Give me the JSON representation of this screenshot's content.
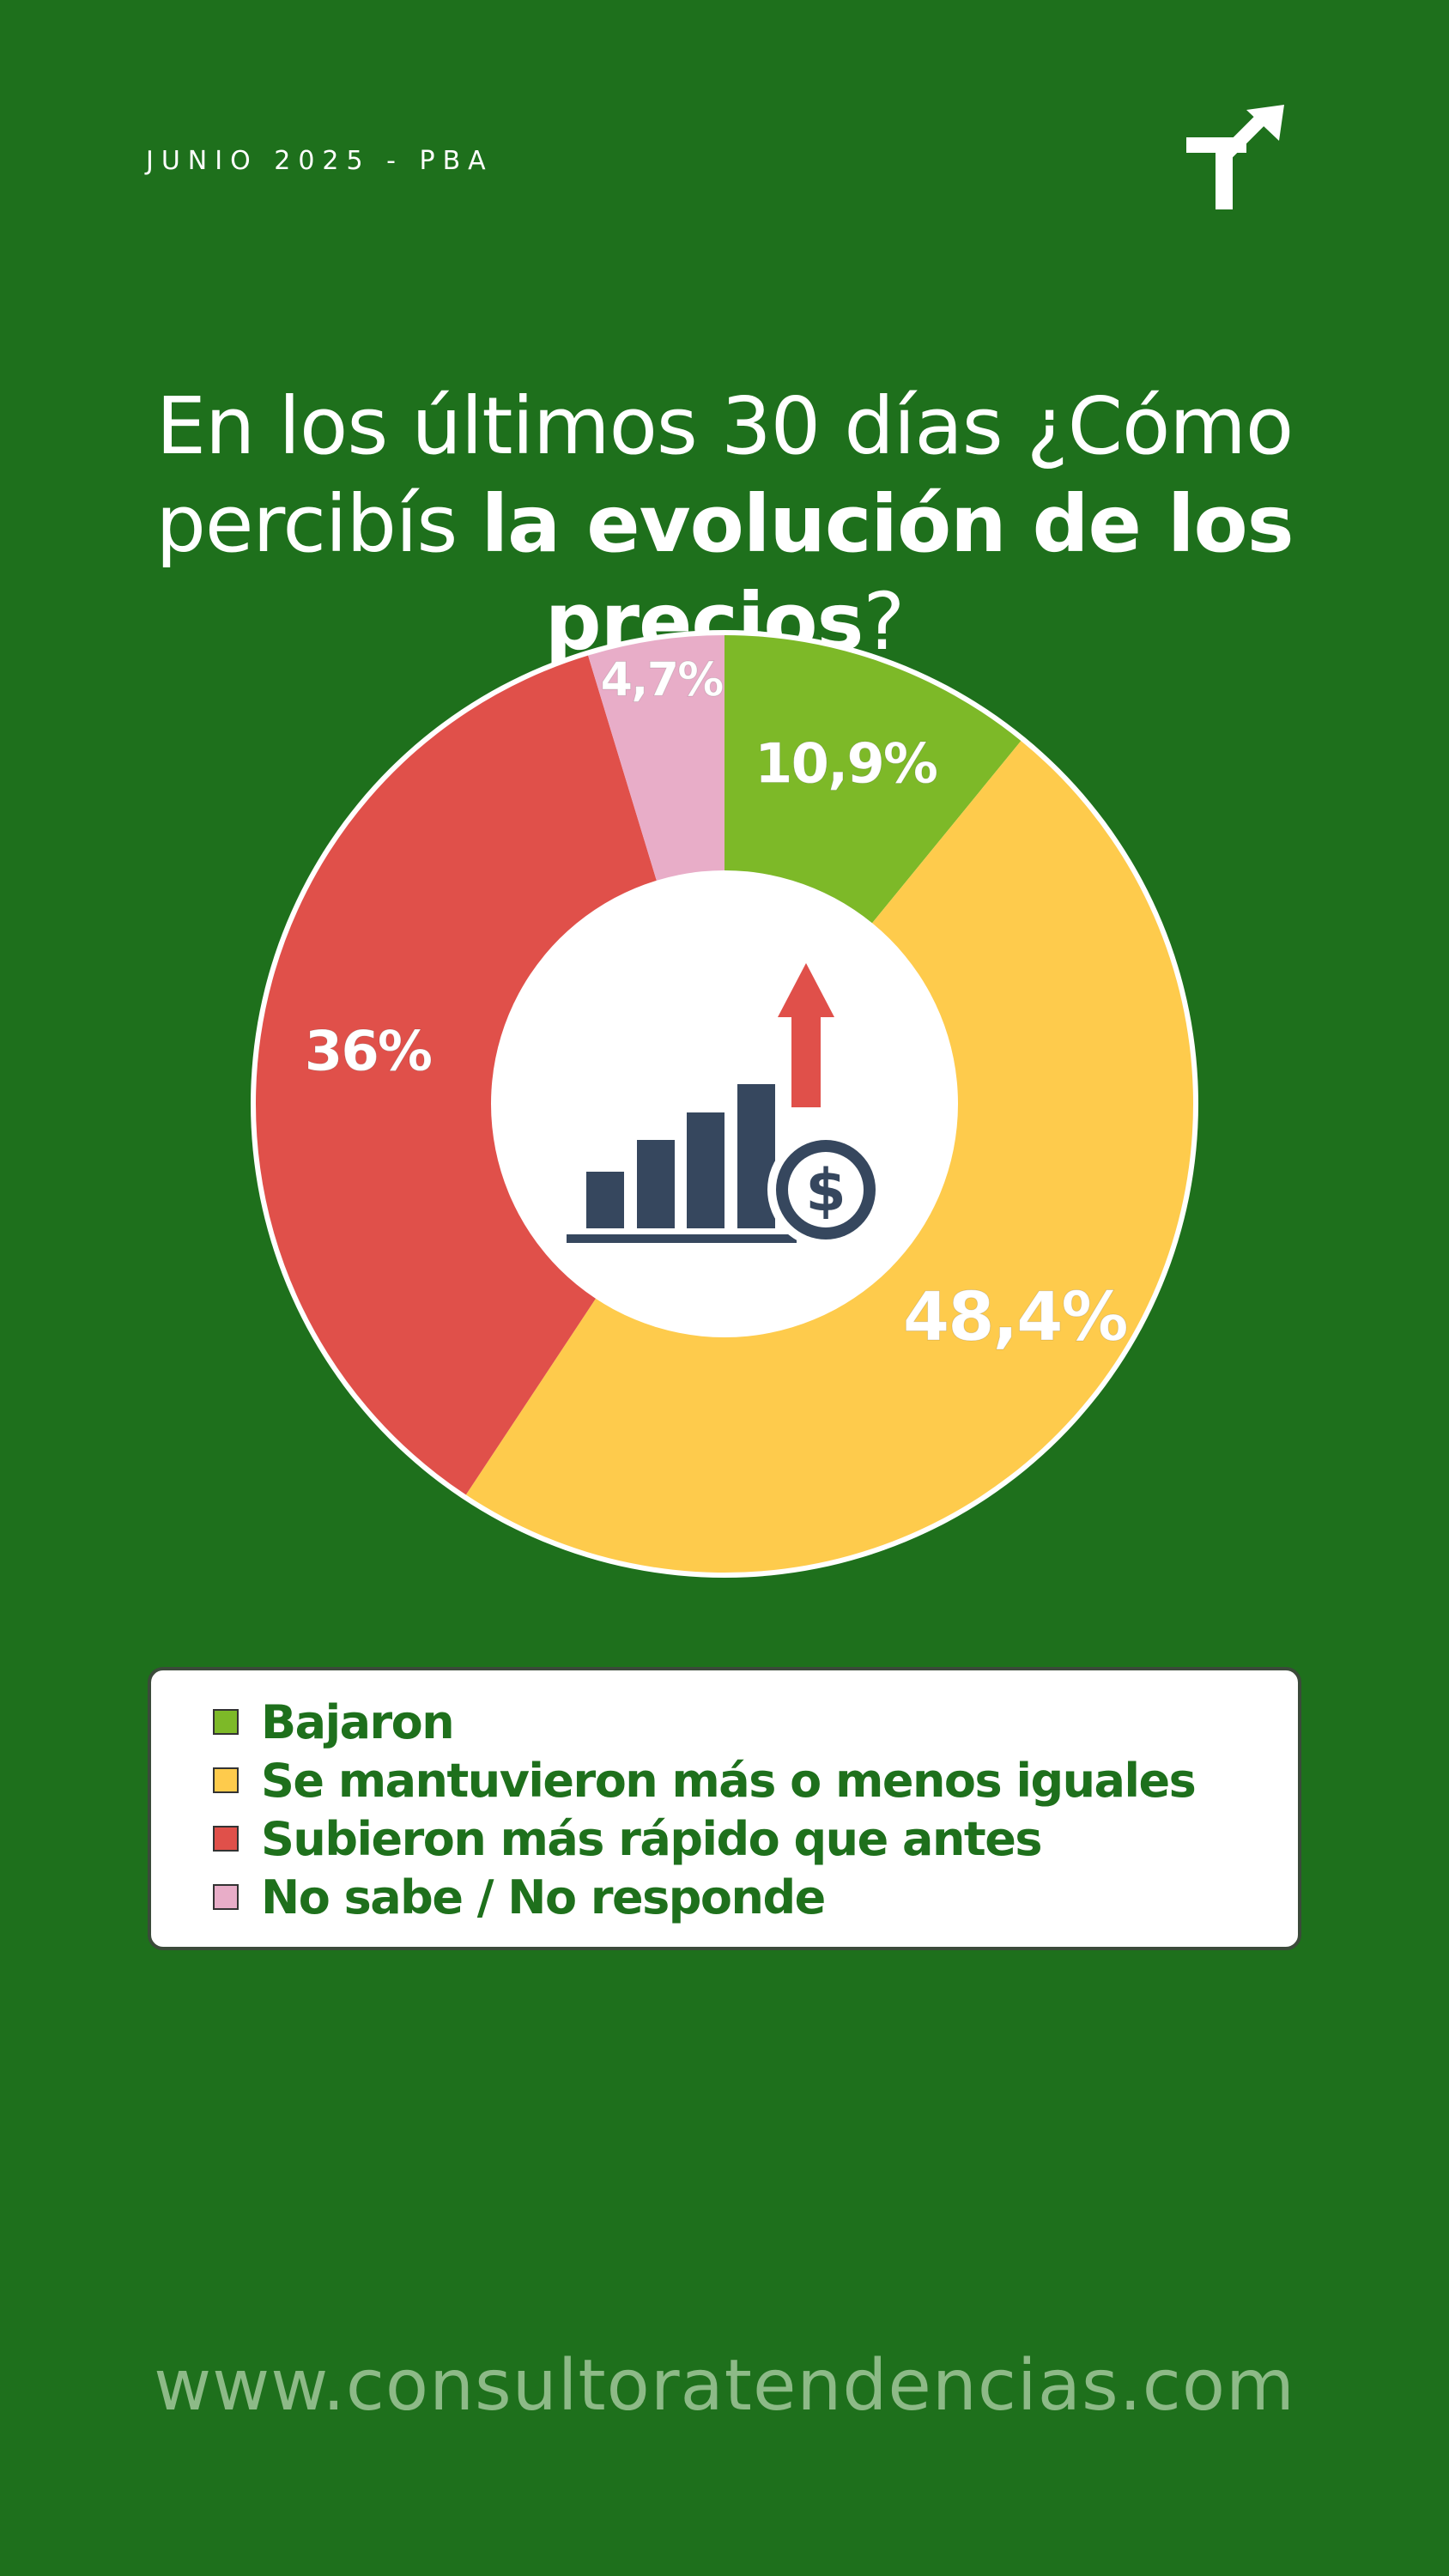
{
  "header": {
    "date_label": "JUNIO 2025 - PBA"
  },
  "logo": {
    "icon": "tendencias-arrow-logo-icon"
  },
  "title": {
    "part1": "En los últimos 30 días ¿Cómo",
    "part2": "percibís ",
    "bold": "la evolución de los precios",
    "part3": "?"
  },
  "chart_data": {
    "type": "pie",
    "donut": true,
    "start": "top",
    "direction": "clockwise",
    "center_icon": "price-increase-chart-icon",
    "series": [
      {
        "name": "Bajaron",
        "value": 10.9,
        "label": "10,9%",
        "color": "#7db928"
      },
      {
        "name": "Se mantuvieron más o menos iguales",
        "value": 48.4,
        "label": "48,4%",
        "color": "#fecb4c"
      },
      {
        "name": "Subieron más rápido que antes",
        "value": 36,
        "label": "36%",
        "color": "#e0504a"
      },
      {
        "name": "No sabe / No responde",
        "value": 4.7,
        "label": "4,7%",
        "color": "#e8adc8"
      }
    ]
  },
  "footer": {
    "url": "www.consultoratendencias.com"
  }
}
